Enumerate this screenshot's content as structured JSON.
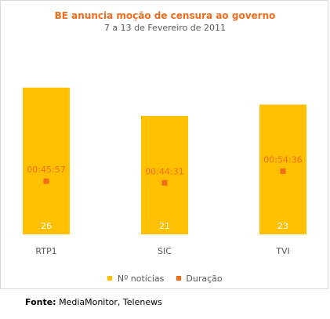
{
  "chart_data": {
    "type": "bar",
    "title": "BE anuncia moção de censura ao governo",
    "subtitle": "7 a 13 de Fevereiro de 2011",
    "categories": [
      "RTP1",
      "SIC",
      "TVI"
    ],
    "series": [
      {
        "name": "Nº notícias",
        "kind": "bar",
        "color": "#ffc000",
        "values": [
          26,
          21,
          23
        ],
        "labels": [
          "26",
          "21",
          "23"
        ]
      },
      {
        "name": "Duração",
        "kind": "marker",
        "color": "#f26c1d",
        "values": [
          "00:45:57",
          "00:44:31",
          "00:54:36"
        ],
        "labels": [
          "00:45:57",
          "00:44:31",
          "00:54:36"
        ]
      }
    ],
    "legend_position": "bottom",
    "grid": false,
    "colors": {
      "title": "#f26c1d",
      "bar": "#ffc000",
      "marker": "#f26c1d"
    }
  },
  "source": {
    "label": "Fonte:",
    "text": " MediaMonitor, Telenews"
  }
}
